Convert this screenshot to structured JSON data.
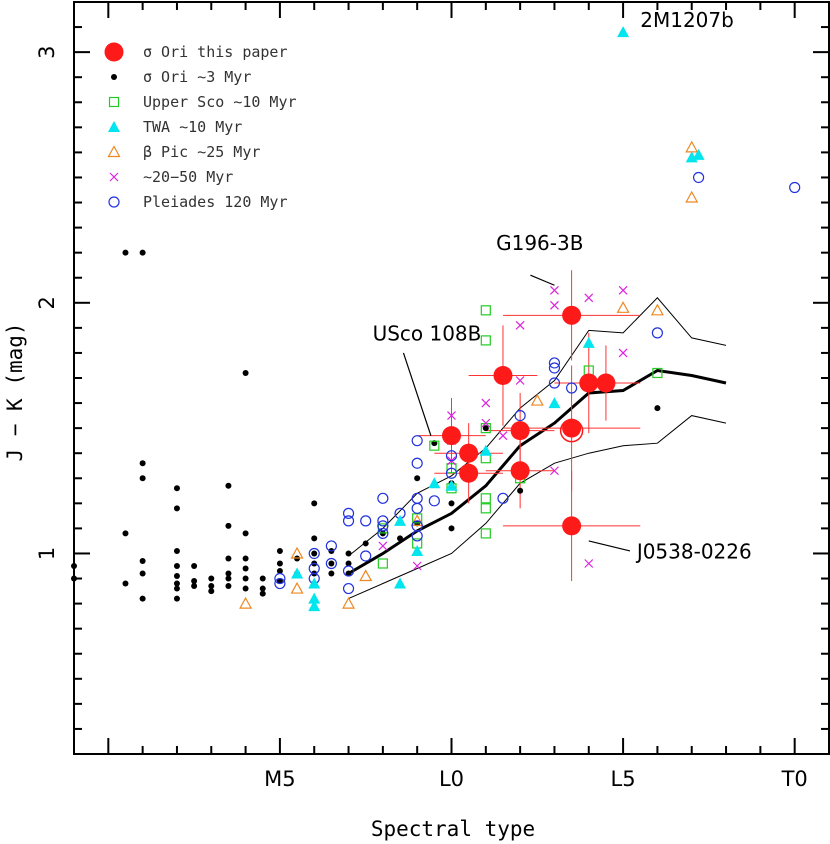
{
  "chart_data": {
    "type": "scatter",
    "xlabel": "Spectral type",
    "ylabel": "J − K (mag)",
    "x_axis_note": "spectral type: M5=5, L0=10, L5=15, T0=20",
    "xlim": [
      -1.0,
      21.0
    ],
    "ylim": [
      0.2,
      3.2
    ],
    "x_ticks": [
      {
        "value": 5,
        "label": "M5"
      },
      {
        "value": 10,
        "label": "L0"
      },
      {
        "value": 15,
        "label": "L5"
      },
      {
        "value": 20,
        "label": "T0"
      }
    ],
    "y_ticks": [
      {
        "value": 1,
        "label": "1"
      },
      {
        "value": 2,
        "label": "2"
      },
      {
        "value": 3,
        "label": "3"
      }
    ],
    "legend_position": "top-left",
    "series": [
      {
        "name": "σ Ori this paper",
        "marker": "big-dot",
        "color": "#ff1a1a",
        "points": [
          {
            "x": 10.0,
            "y": 1.47,
            "xerr": 1.0,
            "yerr": 0.15
          },
          {
            "x": 10.5,
            "y": 1.4,
            "xerr": 1.0,
            "yerr": 0.12
          },
          {
            "x": 10.5,
            "y": 1.32,
            "xerr": 1.0,
            "yerr": 0.12
          },
          {
            "x": 11.5,
            "y": 1.71,
            "xerr": 1.0,
            "yerr": 0.2
          },
          {
            "x": 12.0,
            "y": 1.49,
            "xerr": 1.0,
            "yerr": 0.15
          },
          {
            "x": 12.0,
            "y": 1.33,
            "xerr": 1.0,
            "yerr": 0.15
          },
          {
            "x": 13.5,
            "y": 1.95,
            "xerr": 2.0,
            "yerr": 0.18
          },
          {
            "x": 13.5,
            "y": 1.5,
            "xerr": 2.0,
            "yerr": 0.25
          },
          {
            "x": 13.5,
            "y": 1.11,
            "xerr": 2.0,
            "yerr": 0.22
          },
          {
            "x": 14.0,
            "y": 1.68,
            "xerr": 1.0,
            "yerr": 0.2
          },
          {
            "x": 14.5,
            "y": 1.68,
            "xerr": 1.0,
            "yerr": 0.15
          }
        ]
      },
      {
        "name": "σ Ori ∼3 Myr",
        "marker": "small-dot",
        "color": "#000000",
        "points": [
          {
            "x": -1.0,
            "y": 0.9
          },
          {
            "x": -1.0,
            "y": 0.95
          },
          {
            "x": 0.5,
            "y": 2.2
          },
          {
            "x": 1.0,
            "y": 2.2
          },
          {
            "x": 1.0,
            "y": 1.36
          },
          {
            "x": 1.0,
            "y": 1.3
          },
          {
            "x": 0.5,
            "y": 1.08
          },
          {
            "x": 1.0,
            "y": 0.97
          },
          {
            "x": 1.0,
            "y": 0.92
          },
          {
            "x": 0.5,
            "y": 0.88
          },
          {
            "x": 1.0,
            "y": 0.82
          },
          {
            "x": 2.0,
            "y": 1.26
          },
          {
            "x": 2.0,
            "y": 1.18
          },
          {
            "x": 2.0,
            "y": 1.01
          },
          {
            "x": 2.0,
            "y": 0.95
          },
          {
            "x": 2.0,
            "y": 0.91
          },
          {
            "x": 2.0,
            "y": 0.88
          },
          {
            "x": 2.0,
            "y": 0.86
          },
          {
            "x": 2.0,
            "y": 0.82
          },
          {
            "x": 2.5,
            "y": 0.95
          },
          {
            "x": 2.5,
            "y": 0.89
          },
          {
            "x": 2.5,
            "y": 0.87
          },
          {
            "x": 3.0,
            "y": 0.9
          },
          {
            "x": 3.0,
            "y": 0.87
          },
          {
            "x": 3.0,
            "y": 0.85
          },
          {
            "x": 3.5,
            "y": 1.27
          },
          {
            "x": 3.5,
            "y": 1.11
          },
          {
            "x": 3.5,
            "y": 0.98
          },
          {
            "x": 3.5,
            "y": 0.92
          },
          {
            "x": 3.5,
            "y": 0.9
          },
          {
            "x": 3.5,
            "y": 0.87
          },
          {
            "x": 4.0,
            "y": 1.72
          },
          {
            "x": 4.0,
            "y": 1.08
          },
          {
            "x": 4.0,
            "y": 0.98
          },
          {
            "x": 4.0,
            "y": 0.94
          },
          {
            "x": 4.0,
            "y": 0.9
          },
          {
            "x": 4.0,
            "y": 0.86
          },
          {
            "x": 4.5,
            "y": 0.9
          },
          {
            "x": 4.5,
            "y": 0.86
          },
          {
            "x": 4.5,
            "y": 0.84
          },
          {
            "x": 5.0,
            "y": 1.01
          },
          {
            "x": 5.0,
            "y": 0.96
          },
          {
            "x": 5.0,
            "y": 0.93
          },
          {
            "x": 5.0,
            "y": 0.89
          },
          {
            "x": 5.5,
            "y": 0.98
          },
          {
            "x": 5.5,
            "y": 0.92
          },
          {
            "x": 6.0,
            "y": 1.2
          },
          {
            "x": 6.0,
            "y": 1.06
          },
          {
            "x": 6.0,
            "y": 1.0
          },
          {
            "x": 6.0,
            "y": 0.96
          },
          {
            "x": 6.0,
            "y": 0.92
          },
          {
            "x": 6.0,
            "y": 0.88
          },
          {
            "x": 6.5,
            "y": 1.01
          },
          {
            "x": 6.5,
            "y": 0.96
          },
          {
            "x": 6.5,
            "y": 0.92
          },
          {
            "x": 7.0,
            "y": 1.0
          },
          {
            "x": 7.0,
            "y": 0.96
          },
          {
            "x": 7.0,
            "y": 0.92
          },
          {
            "x": 7.5,
            "y": 1.04
          },
          {
            "x": 8.0,
            "y": 1.08
          },
          {
            "x": 8.5,
            "y": 1.06
          },
          {
            "x": 9.0,
            "y": 1.3
          },
          {
            "x": 9.0,
            "y": 1.12
          },
          {
            "x": 9.5,
            "y": 1.44
          },
          {
            "x": 10.0,
            "y": 1.28
          },
          {
            "x": 10.0,
            "y": 1.2
          },
          {
            "x": 10.0,
            "y": 1.1
          },
          {
            "x": 11.0,
            "y": 1.5
          },
          {
            "x": 12.0,
            "y": 1.25
          },
          {
            "x": 16.0,
            "y": 1.58
          }
        ]
      },
      {
        "name": "Upper Sco ∼10 Myr",
        "marker": "open-square",
        "color": "#22cc22",
        "points": [
          {
            "x": 8.0,
            "y": 1.1
          },
          {
            "x": 8.0,
            "y": 0.96
          },
          {
            "x": 9.0,
            "y": 1.14
          },
          {
            "x": 9.0,
            "y": 1.04
          },
          {
            "x": 9.5,
            "y": 1.43
          },
          {
            "x": 10.0,
            "y": 1.26
          },
          {
            "x": 10.0,
            "y": 1.34
          },
          {
            "x": 11.0,
            "y": 1.97
          },
          {
            "x": 11.0,
            "y": 1.85
          },
          {
            "x": 11.0,
            "y": 1.5
          },
          {
            "x": 11.0,
            "y": 1.38
          },
          {
            "x": 11.0,
            "y": 1.22
          },
          {
            "x": 11.0,
            "y": 1.18
          },
          {
            "x": 11.0,
            "y": 1.08
          },
          {
            "x": 12.0,
            "y": 1.3
          },
          {
            "x": 14.0,
            "y": 1.73
          },
          {
            "x": 16.0,
            "y": 1.72
          }
        ]
      },
      {
        "name": "TWA ∼10 Myr",
        "marker": "filled-triangle",
        "color": "#00e5ee",
        "points": [
          {
            "x": 5.5,
            "y": 0.92
          },
          {
            "x": 6.0,
            "y": 0.82
          },
          {
            "x": 6.0,
            "y": 0.79
          },
          {
            "x": 6.0,
            "y": 0.88
          },
          {
            "x": 8.5,
            "y": 0.88
          },
          {
            "x": 8.5,
            "y": 1.13
          },
          {
            "x": 9.0,
            "y": 1.01
          },
          {
            "x": 9.5,
            "y": 1.28
          },
          {
            "x": 10.0,
            "y": 1.27
          },
          {
            "x": 11.0,
            "y": 1.41
          },
          {
            "x": 13.0,
            "y": 1.6
          },
          {
            "x": 14.0,
            "y": 1.84
          },
          {
            "x": 17.0,
            "y": 2.58
          },
          {
            "x": 17.2,
            "y": 2.59
          },
          {
            "x": 15.0,
            "y": 3.08
          }
        ]
      },
      {
        "name": "β Pic ∼25 Myr",
        "marker": "open-triangle",
        "color": "#ee8822",
        "points": [
          {
            "x": 4.0,
            "y": 0.8
          },
          {
            "x": 5.5,
            "y": 1.0
          },
          {
            "x": 5.5,
            "y": 0.86
          },
          {
            "x": 7.0,
            "y": 0.8
          },
          {
            "x": 7.5,
            "y": 0.91
          },
          {
            "x": 9.0,
            "y": 1.13
          },
          {
            "x": 12.5,
            "y": 1.61
          },
          {
            "x": 15.0,
            "y": 1.98
          },
          {
            "x": 16.0,
            "y": 1.97
          },
          {
            "x": 17.0,
            "y": 2.62
          },
          {
            "x": 17.0,
            "y": 2.42
          }
        ]
      },
      {
        "name": "∼20−50 Myr",
        "marker": "cross",
        "color": "#dd22dd",
        "points": [
          {
            "x": 8.0,
            "y": 1.03
          },
          {
            "x": 9.0,
            "y": 0.95
          },
          {
            "x": 10.0,
            "y": 1.55
          },
          {
            "x": 10.0,
            "y": 1.45
          },
          {
            "x": 10.0,
            "y": 1.37
          },
          {
            "x": 10.5,
            "y": 1.32
          },
          {
            "x": 11.0,
            "y": 1.6
          },
          {
            "x": 11.0,
            "y": 1.52
          },
          {
            "x": 11.5,
            "y": 1.47
          },
          {
            "x": 12.0,
            "y": 1.91
          },
          {
            "x": 12.0,
            "y": 1.69
          },
          {
            "x": 13.0,
            "y": 2.05
          },
          {
            "x": 13.0,
            "y": 1.99
          },
          {
            "x": 13.0,
            "y": 1.33
          },
          {
            "x": 14.0,
            "y": 2.02
          },
          {
            "x": 14.0,
            "y": 0.96
          },
          {
            "x": 15.0,
            "y": 2.05
          },
          {
            "x": 15.0,
            "y": 1.8
          }
        ]
      },
      {
        "name": "Pleiades 120 Myr",
        "marker": "open-circle",
        "color": "#2233dd",
        "points": [
          {
            "x": 5.0,
            "y": 0.9
          },
          {
            "x": 5.0,
            "y": 0.88
          },
          {
            "x": 6.0,
            "y": 1.0
          },
          {
            "x": 6.0,
            "y": 0.94
          },
          {
            "x": 6.0,
            "y": 0.9
          },
          {
            "x": 6.5,
            "y": 1.03
          },
          {
            "x": 6.5,
            "y": 0.96
          },
          {
            "x": 7.0,
            "y": 1.16
          },
          {
            "x": 7.0,
            "y": 1.13
          },
          {
            "x": 7.0,
            "y": 0.93
          },
          {
            "x": 7.0,
            "y": 0.86
          },
          {
            "x": 7.5,
            "y": 1.13
          },
          {
            "x": 7.5,
            "y": 0.99
          },
          {
            "x": 8.0,
            "y": 1.22
          },
          {
            "x": 8.0,
            "y": 1.13
          },
          {
            "x": 8.0,
            "y": 1.11
          },
          {
            "x": 8.0,
            "y": 1.08
          },
          {
            "x": 8.5,
            "y": 1.16
          },
          {
            "x": 9.0,
            "y": 1.45
          },
          {
            "x": 9.0,
            "y": 1.36
          },
          {
            "x": 9.0,
            "y": 1.22
          },
          {
            "x": 9.0,
            "y": 1.18
          },
          {
            "x": 9.0,
            "y": 1.11
          },
          {
            "x": 9.0,
            "y": 1.07
          },
          {
            "x": 9.5,
            "y": 1.21
          },
          {
            "x": 10.0,
            "y": 1.39
          },
          {
            "x": 10.0,
            "y": 1.32
          },
          {
            "x": 11.5,
            "y": 1.22
          },
          {
            "x": 12.0,
            "y": 1.55
          },
          {
            "x": 13.0,
            "y": 1.76
          },
          {
            "x": 13.0,
            "y": 1.74
          },
          {
            "x": 13.0,
            "y": 1.68
          },
          {
            "x": 13.5,
            "y": 1.66
          },
          {
            "x": 16.0,
            "y": 1.88
          },
          {
            "x": 17.2,
            "y": 2.5
          },
          {
            "x": 20.0,
            "y": 2.46
          }
        ]
      }
    ],
    "extra_markers": [
      {
        "note": "large open red circle around one sigma Ori point",
        "x": 13.5,
        "y": 1.49,
        "color": "#ff1a1a"
      }
    ],
    "lines": [
      {
        "role": "mean",
        "width": 3,
        "x": [
          7,
          8,
          9,
          10,
          11,
          12,
          13,
          14,
          15,
          16,
          17,
          18
        ],
        "y": [
          0.92,
          1.0,
          1.09,
          1.16,
          1.27,
          1.43,
          1.52,
          1.64,
          1.65,
          1.73,
          1.71,
          1.68
        ]
      },
      {
        "role": "upper",
        "width": 1,
        "x": [
          7,
          8,
          9,
          10,
          11,
          12,
          13,
          14,
          15,
          16,
          17,
          18
        ],
        "y": [
          0.99,
          1.1,
          1.24,
          1.31,
          1.42,
          1.58,
          1.69,
          1.89,
          1.88,
          2.02,
          1.86,
          1.83
        ]
      },
      {
        "role": "lower",
        "width": 1,
        "x": [
          7,
          8,
          9,
          10,
          11,
          12,
          13,
          14,
          15,
          16,
          17,
          18
        ],
        "y": [
          0.82,
          0.88,
          0.94,
          1.0,
          1.12,
          1.28,
          1.36,
          1.4,
          1.43,
          1.44,
          1.55,
          1.52
        ]
      }
    ],
    "annotations": [
      {
        "text": "2M1207b",
        "label_x": 15.5,
        "label_y": 3.1
      },
      {
        "text": "G196-3B",
        "label_x": 11.3,
        "label_y": 2.21,
        "line": [
          [
            12.3,
            2.11
          ],
          [
            13.0,
            2.07
          ]
        ]
      },
      {
        "text": "USco 108B",
        "label_x": 7.7,
        "label_y": 1.85,
        "line": [
          [
            8.6,
            1.8
          ],
          [
            9.4,
            1.47
          ]
        ]
      },
      {
        "text": "J0538-0226",
        "label_x": 15.4,
        "label_y": 0.98,
        "line": [
          [
            14.0,
            1.05
          ],
          [
            15.2,
            1.01
          ]
        ]
      }
    ]
  }
}
